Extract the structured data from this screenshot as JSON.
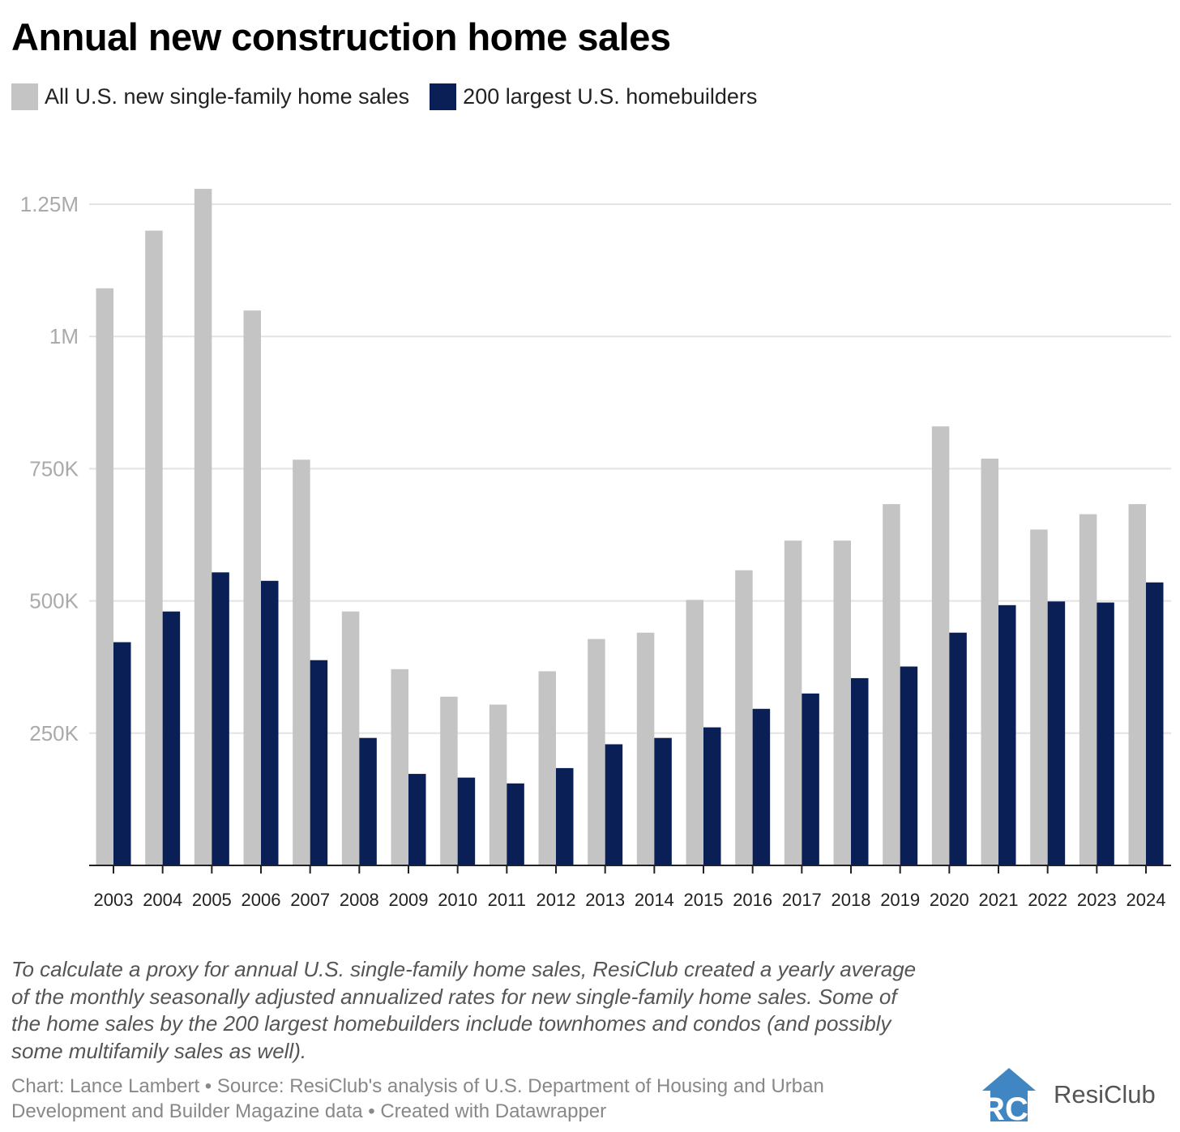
{
  "chart_data": {
    "type": "bar",
    "title": "Annual new construction home sales",
    "categories": [
      "2003",
      "2004",
      "2005",
      "2006",
      "2007",
      "2008",
      "2009",
      "2010",
      "2011",
      "2012",
      "2013",
      "2014",
      "2015",
      "2016",
      "2017",
      "2018",
      "2019",
      "2020",
      "2021",
      "2022",
      "2023",
      "2024"
    ],
    "series": [
      {
        "name": "All U.S. new single-family home sales",
        "color": "#c4c4c4",
        "values": [
          1091000,
          1200000,
          1279000,
          1049000,
          767000,
          480000,
          371000,
          319000,
          304000,
          367000,
          428000,
          440000,
          502000,
          558000,
          614000,
          614000,
          683000,
          830000,
          769000,
          635000,
          664000,
          683000
        ]
      },
      {
        "name": "200 largest U.S. homebuilders",
        "color": "#0b1f57",
        "values": [
          422000,
          480000,
          554000,
          538000,
          388000,
          241000,
          173000,
          166000,
          155000,
          184000,
          229000,
          241000,
          261000,
          296000,
          325000,
          354000,
          376000,
          440000,
          492000,
          499000,
          497000,
          535000
        ]
      }
    ],
    "yticks": [
      {
        "value": 250000,
        "label": "250K"
      },
      {
        "value": 500000,
        "label": "500K"
      },
      {
        "value": 750000,
        "label": "750K"
      },
      {
        "value": 1000000,
        "label": "1M"
      },
      {
        "value": 1250000,
        "label": "1.25M"
      }
    ],
    "ylim": [
      0,
      1250000
    ],
    "xlabel": "",
    "ylabel": "",
    "grid": true,
    "legend_position": "top-left"
  },
  "notes": "To calculate a proxy for annual U.S. single-family home sales, ResiClub created a yearly average of the monthly seasonally adjusted annualized rates for new single-family home sales. Some of the home sales by the 200 largest homebuilders include townhomes and condos (and possibly some multifamily sales as well).",
  "credit": "Chart: Lance Lambert • Source: ResiClub's analysis of U.S. Department of Housing and Urban Development and Builder Magazine data • Created with Datawrapper",
  "logo": {
    "mark": "RC",
    "name": "ResiClub"
  }
}
